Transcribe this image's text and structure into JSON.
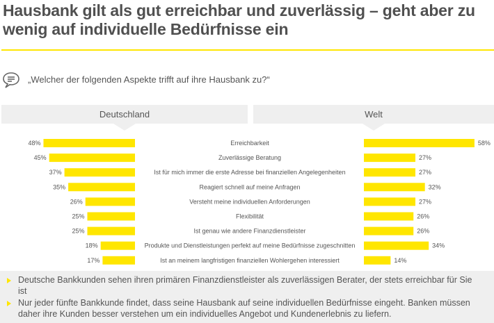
{
  "title": "Hausbank gilt als gut erreichbar und zuverlässig – geht aber zu wenig auf individuelle Bedürfnisse ein",
  "question": "„Welcher der folgenden Aspekte trifft auf ihre Hausbank zu?“",
  "headers": {
    "left": "Deutschland",
    "right": "Welt"
  },
  "colors": {
    "bar": "#ffe600",
    "accent": "#ffe600",
    "panel": "#efefef",
    "text": "#555555"
  },
  "chart_data": {
    "type": "bar",
    "orientation": "horizontal-butterfly",
    "title": "„Welcher der folgenden Aspekte trifft auf ihre Hausbank zu?“",
    "xlabel": "",
    "ylabel": "",
    "unit": "%",
    "categories": [
      "Erreichbarkeit",
      "Zuverlässige Beratung",
      "Ist für mich immer die erste Adresse bei finanziellen Angelegenheiten",
      "Reagiert schnell auf meine Anfragen",
      "Versteht meine individuellen Anforderungen",
      "Flexibilität",
      "Ist genau wie andere Finanzdienstleister",
      "Produkte und Dienstleistungen perfekt auf meine Bedürfnisse zugeschnitten",
      "Ist an meinem langfristigen finanziellen Wohlergehen interessiert"
    ],
    "series": [
      {
        "name": "Deutschland",
        "values": [
          48,
          45,
          37,
          35,
          26,
          25,
          25,
          18,
          17
        ]
      },
      {
        "name": "Welt",
        "values": [
          58,
          27,
          27,
          32,
          27,
          26,
          26,
          34,
          14
        ]
      }
    ],
    "xlim": [
      0,
      60
    ],
    "grid": false
  },
  "summary": [
    "Deutsche Bankkunden sehen ihren primären Finanzdienstleister als zuverlässigen Berater, der stets erreichbar für Sie ist",
    "Nur jeder fünfte Bankkunde findet, dass seine Hausbank auf seine individuellen Bedürfnisse eingeht. Banken müssen daher ihre Kunden besser verstehen um ein individuelles Angebot und Kundenerlebnis zu liefern."
  ]
}
